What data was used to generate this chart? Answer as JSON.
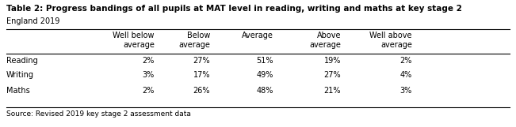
{
  "title": "Table 2: Progress bandings of all pupils at MAT level in reading, writing and maths at key stage 2",
  "subtitle": "England 2019",
  "source": "Source: Revised 2019 key stage 2 assessment data",
  "col_headers_line1": [
    "Well below",
    "Below",
    "Average",
    "Above",
    "Well above"
  ],
  "col_headers_line2": [
    "average",
    "average",
    "",
    "average",
    "average"
  ],
  "row_labels": [
    "Reading",
    "Writing",
    "Maths"
  ],
  "data": [
    [
      "2%",
      "27%",
      "51%",
      "19%",
      "2%"
    ],
    [
      "3%",
      "17%",
      "49%",
      "27%",
      "4%"
    ],
    [
      "2%",
      "26%",
      "48%",
      "21%",
      "3%"
    ]
  ],
  "bg_color": "#ffffff",
  "text_color": "#000000",
  "title_fontsize": 7.5,
  "subtitle_fontsize": 7.0,
  "header_fontsize": 7.0,
  "data_fontsize": 7.0,
  "source_fontsize": 6.5
}
